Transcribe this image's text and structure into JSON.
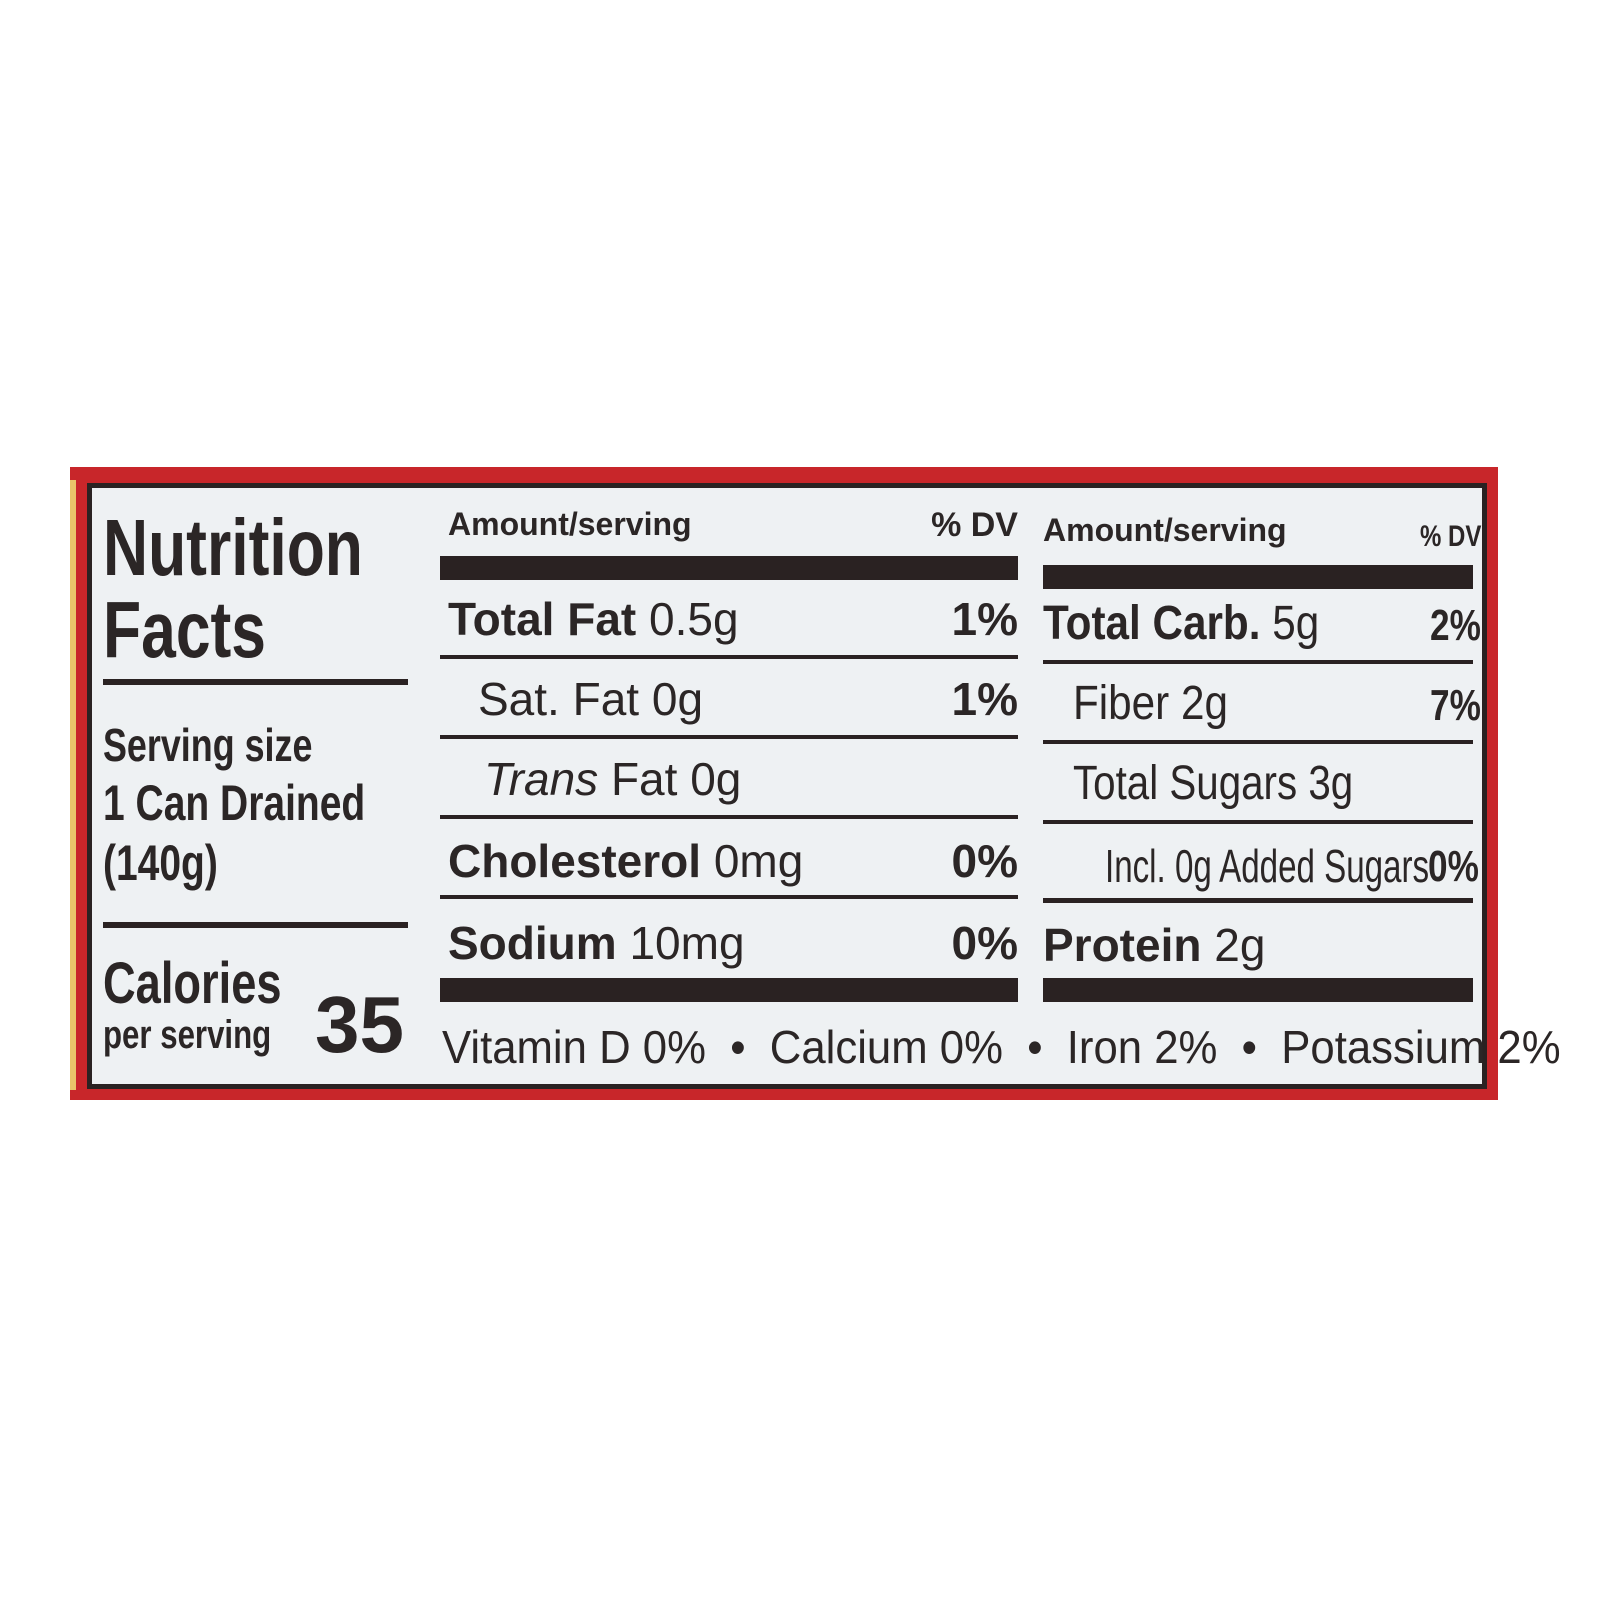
{
  "title_line1": "Nutrition",
  "title_line2": "Facts",
  "serving": {
    "label": "Serving size",
    "line2": "1 Can Drained",
    "line3": "(140g)"
  },
  "calories": {
    "label": "Calories",
    "sub": "per serving",
    "value": "35"
  },
  "left_header": {
    "amount": "Amount/serving",
    "dv": "% DV"
  },
  "right_header": {
    "amount": "Amount/serving",
    "dv": "% DV"
  },
  "left_rows": [
    {
      "name": "Total Fat",
      "amount": "0.5g",
      "dv": "1%"
    },
    {
      "name": "Sat. Fat",
      "amount": "0g",
      "dv": "1%"
    },
    {
      "name": "Trans",
      "amount": "Fat 0g",
      "dv": ""
    },
    {
      "name": "Cholesterol",
      "amount": "0mg",
      "dv": "0%"
    },
    {
      "name": "Sodium",
      "amount": "10mg",
      "dv": "0%"
    }
  ],
  "right_rows": [
    {
      "name": "Total Carb.",
      "amount": "5g",
      "dv": "2%"
    },
    {
      "name": "Fiber",
      "amount": "2g",
      "dv": "7%"
    },
    {
      "name": "Total Sugars",
      "amount": "3g",
      "dv": ""
    },
    {
      "name": "Incl. 0g Added Sugars",
      "amount": "",
      "dv": "0%"
    },
    {
      "name": "Protein",
      "amount": "2g",
      "dv": ""
    }
  ],
  "vitamins": "Vitamin D 0%  •  Calcium 0%  •  Iron 2%  •  Potassium 2%",
  "colors": {
    "border_red": "#c8262a",
    "ink": "#2a2222",
    "panel": "#eef1f3"
  }
}
